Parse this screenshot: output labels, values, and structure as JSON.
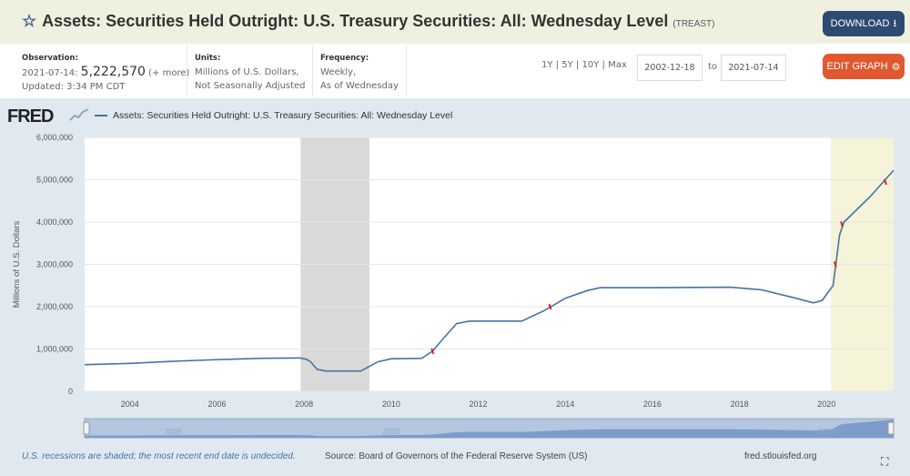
{
  "header": {
    "title": "Assets: Securities Held Outright: U.S. Treasury Securities: All: Wednesday Level",
    "code": "(TREAST)",
    "download_label": "DOWNLOAD",
    "edit_label": "EDIT GRAPH"
  },
  "observation": {
    "label": "Observation:",
    "date": "2021-07-14:",
    "value": "5,222,570",
    "more": "(+ more)",
    "updated": "Updated: 3:34 PM CDT"
  },
  "units": {
    "label": "Units:",
    "line1": "Millions of U.S. Dollars,",
    "line2": "Not Seasonally Adjusted"
  },
  "frequency": {
    "label": "Frequency:",
    "line1": "Weekly,",
    "line2": "As of Wednesday"
  },
  "ranges": {
    "y1": "1Y",
    "y5": "5Y",
    "y10": "10Y",
    "max": "Max",
    "sep": "|"
  },
  "dates": {
    "start": "2002-12-18",
    "to": "to",
    "end": "2021-07-14"
  },
  "logo": "FRED",
  "footer": {
    "note": "U.S. recessions are shaded; the most recent end date is undecided.",
    "source": "Source: Board of Governors of the Federal Reserve System (US)",
    "site": "fred.stlouisfed.org"
  },
  "colors": {
    "line": "#4572a7",
    "recession": "#d9d9d9",
    "recession_recent": "#f5f3d8",
    "marker": "#e02020"
  },
  "chart_data": {
    "type": "line",
    "title": "Assets: Securities Held Outright: U.S. Treasury Securities: All: Wednesday Level",
    "ylabel": "Millions of U.S. Dollars",
    "xlim": [
      2002.96,
      2021.54
    ],
    "ylim": [
      0,
      6000000
    ],
    "yticks": [
      0,
      1000000,
      2000000,
      3000000,
      4000000,
      5000000,
      6000000
    ],
    "ytick_labels": [
      "0",
      "1,000,000",
      "2,000,000",
      "3,000,000",
      "4,000,000",
      "5,000,000",
      "6,000,000"
    ],
    "xticks": [
      2004,
      2006,
      2008,
      2010,
      2012,
      2014,
      2016,
      2018,
      2020
    ],
    "xtick_labels": [
      "2004",
      "2006",
      "2008",
      "2010",
      "2012",
      "2014",
      "2016",
      "2018",
      "2020"
    ],
    "navigator_labels": [
      {
        "x": 2005,
        "label": "2005"
      },
      {
        "x": 2010,
        "label": "2010"
      },
      {
        "x": 2020,
        "label": "2020"
      }
    ],
    "recessions": [
      [
        2007.92,
        2009.5
      ],
      [
        2020.1,
        2021.54
      ]
    ],
    "series": [
      {
        "name": "Assets: Securities Held Outright: U.S. Treasury Securities: All: Wednesday Level",
        "x": [
          2002.96,
          2004,
          2005,
          2006,
          2007,
          2007.9,
          2008.05,
          2008.15,
          2008.3,
          2008.5,
          2009.3,
          2009.7,
          2010,
          2010.7,
          2010.95,
          2011.2,
          2011.5,
          2011.8,
          2012.5,
          2013,
          2013.5,
          2014,
          2014.5,
          2014.8,
          2016,
          2017.8,
          2018.5,
          2019.3,
          2019.7,
          2019.9,
          2020.15,
          2020.2,
          2020.3,
          2020.4,
          2021.0,
          2021.54
        ],
        "y": [
          630000,
          660000,
          710000,
          750000,
          780000,
          790000,
          760000,
          700000,
          520000,
          480000,
          480000,
          700000,
          770000,
          780000,
          950000,
          1250000,
          1600000,
          1660000,
          1660000,
          1660000,
          1900000,
          2200000,
          2380000,
          2450000,
          2450000,
          2460000,
          2400000,
          2200000,
          2090000,
          2150000,
          2500000,
          2900000,
          3700000,
          4000000,
          4600000,
          5222570
        ]
      }
    ],
    "markers": [
      {
        "x": 2010.95,
        "y": 950000
      },
      {
        "x": 2013.65,
        "y": 2000000
      },
      {
        "x": 2020.2,
        "y": 3000000
      },
      {
        "x": 2020.35,
        "y": 3950000
      },
      {
        "x": 2021.35,
        "y": 4950000
      }
    ]
  }
}
